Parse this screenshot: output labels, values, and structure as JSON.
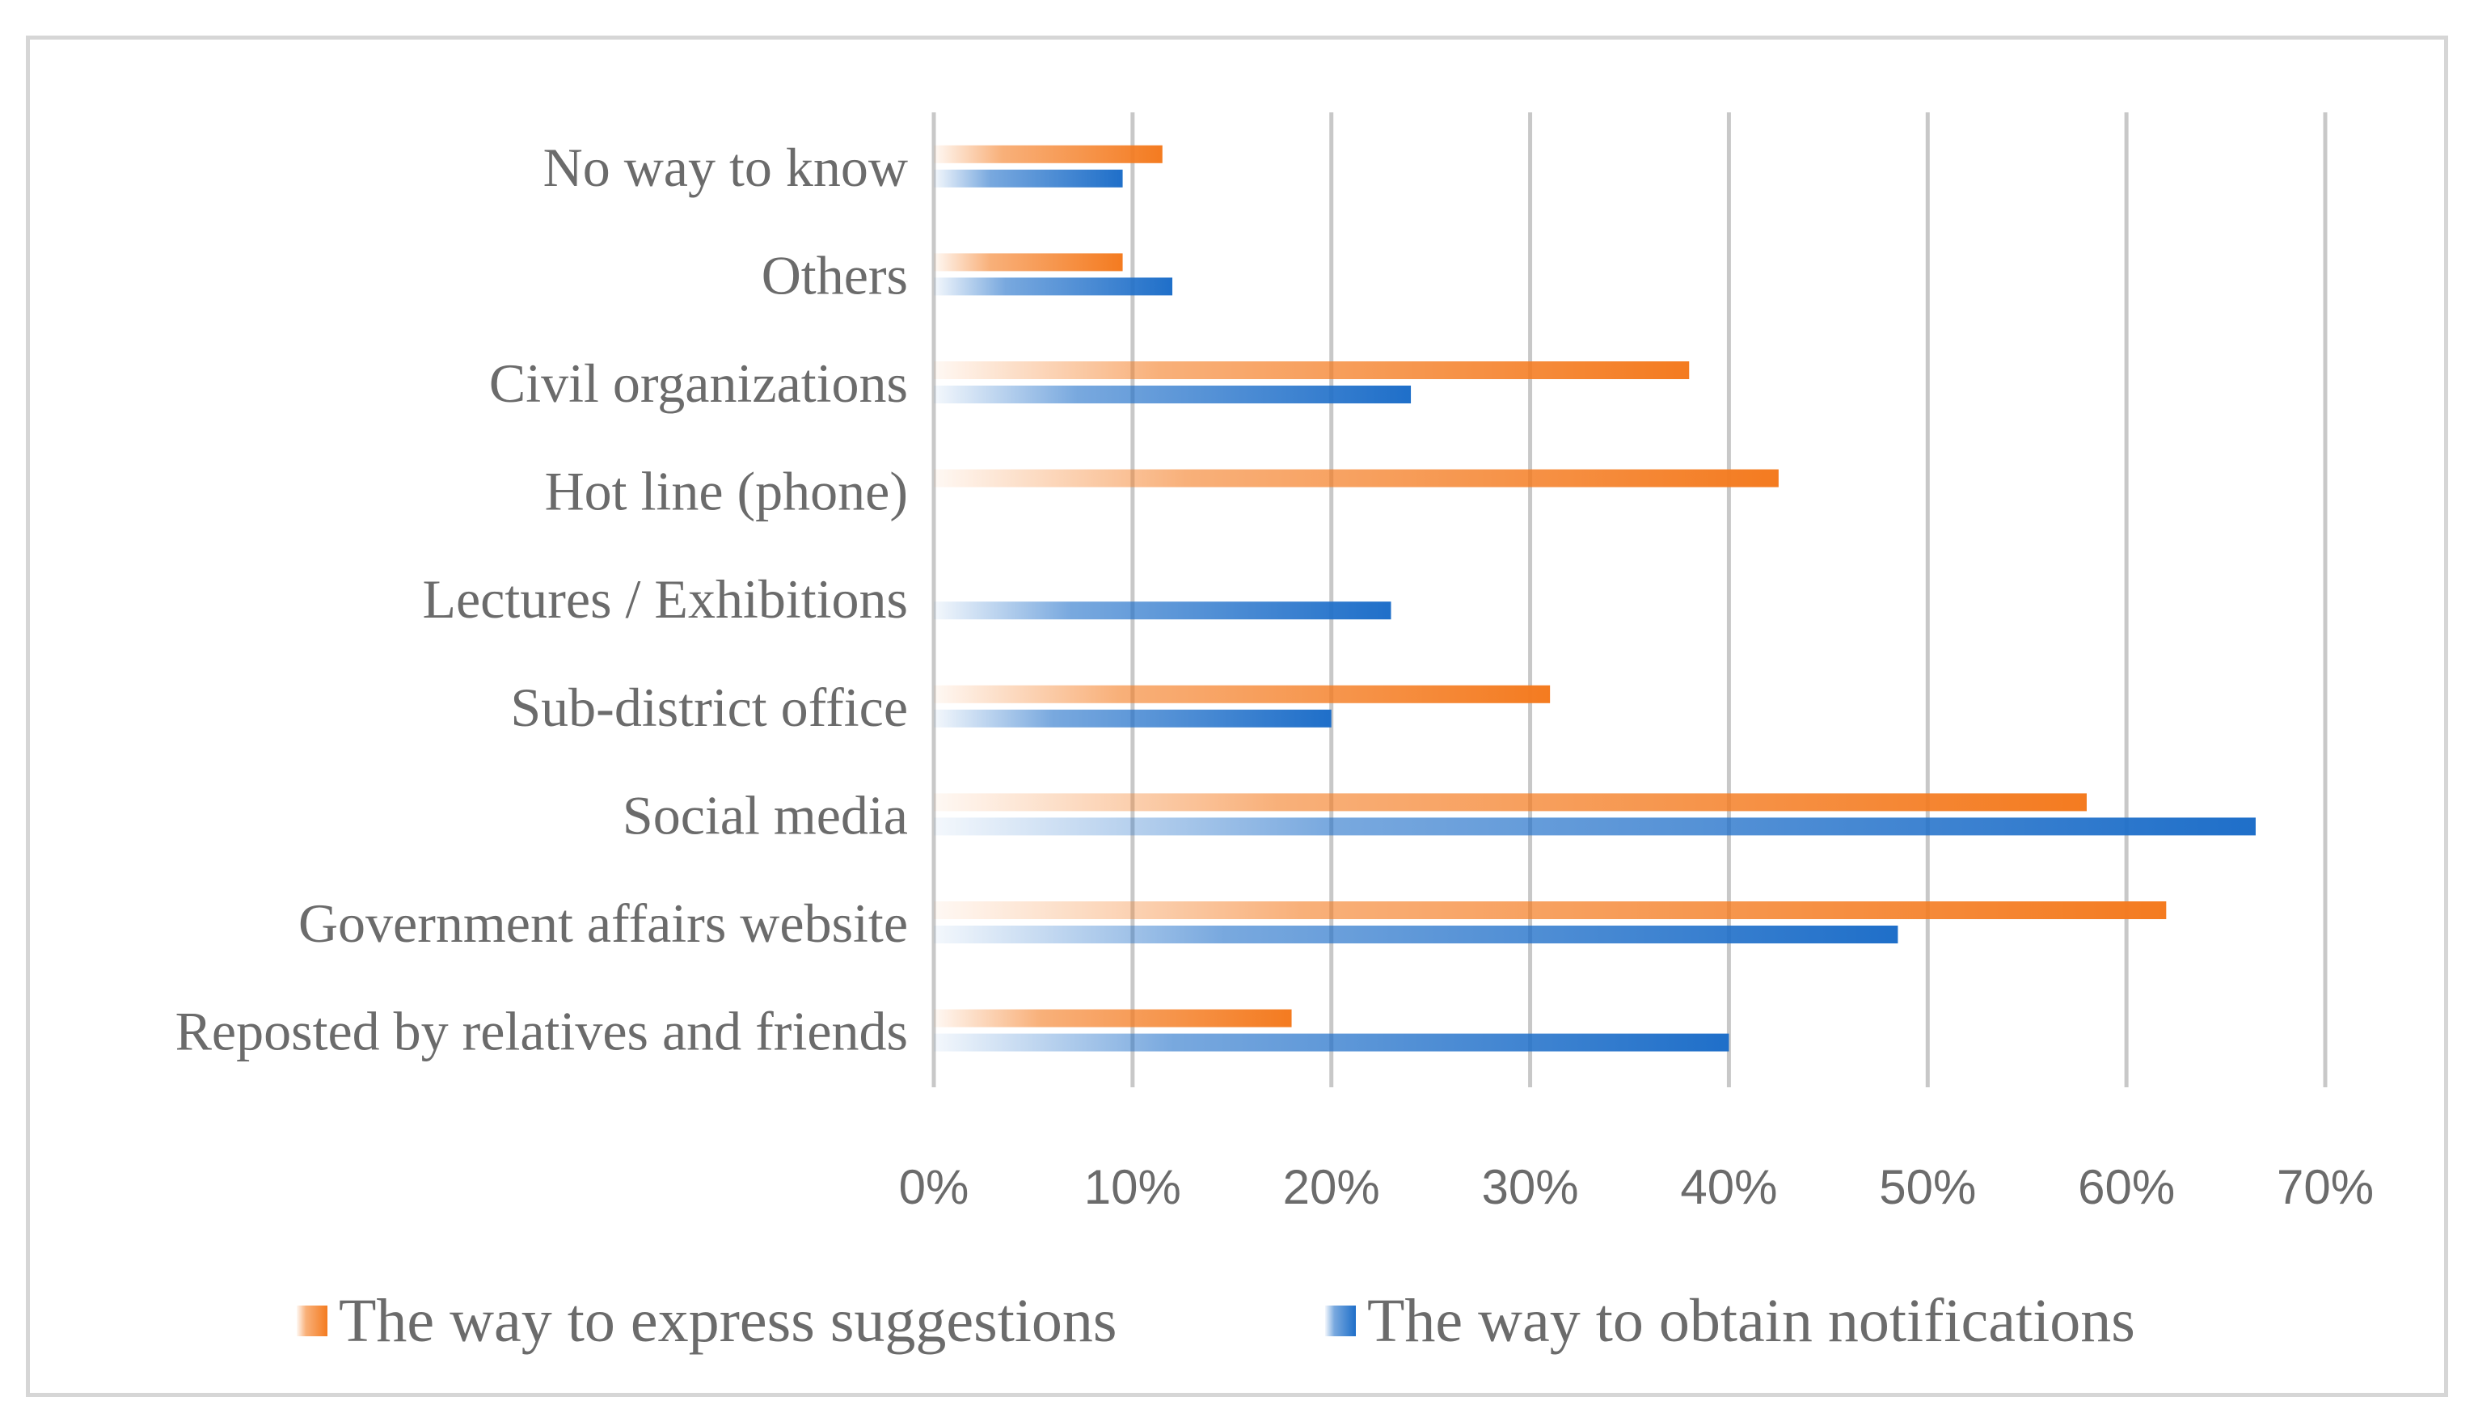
{
  "chart_data": {
    "type": "bar",
    "orientation": "horizontal",
    "title": "",
    "xlabel": "",
    "ylabel": "",
    "xlim": [
      0,
      70
    ],
    "grid": true,
    "legend_position": "bottom",
    "ticks": [
      "0%",
      "10%",
      "20%",
      "30%",
      "40%",
      "50%",
      "60%",
      "70%"
    ],
    "tick_values": [
      0,
      10,
      20,
      30,
      40,
      50,
      60,
      70
    ],
    "categories": [
      "No way to know",
      "Others",
      "Civil organizations",
      "Hot line (phone)",
      "Lectures / Exhibitions",
      "Sub-district office",
      "Social media",
      "Government affairs website",
      "Reposted by relatives and friends"
    ],
    "series": [
      {
        "name": "The way to express suggestions",
        "color": "#f47b20",
        "values": [
          11.5,
          9.5,
          38,
          42.5,
          0,
          31,
          58,
          62,
          18
        ]
      },
      {
        "name": "The way to obtain notifications",
        "color": "#1f6fc9",
        "values": [
          9.5,
          12,
          24,
          0,
          23,
          20,
          66.5,
          48.5,
          40
        ]
      }
    ]
  }
}
